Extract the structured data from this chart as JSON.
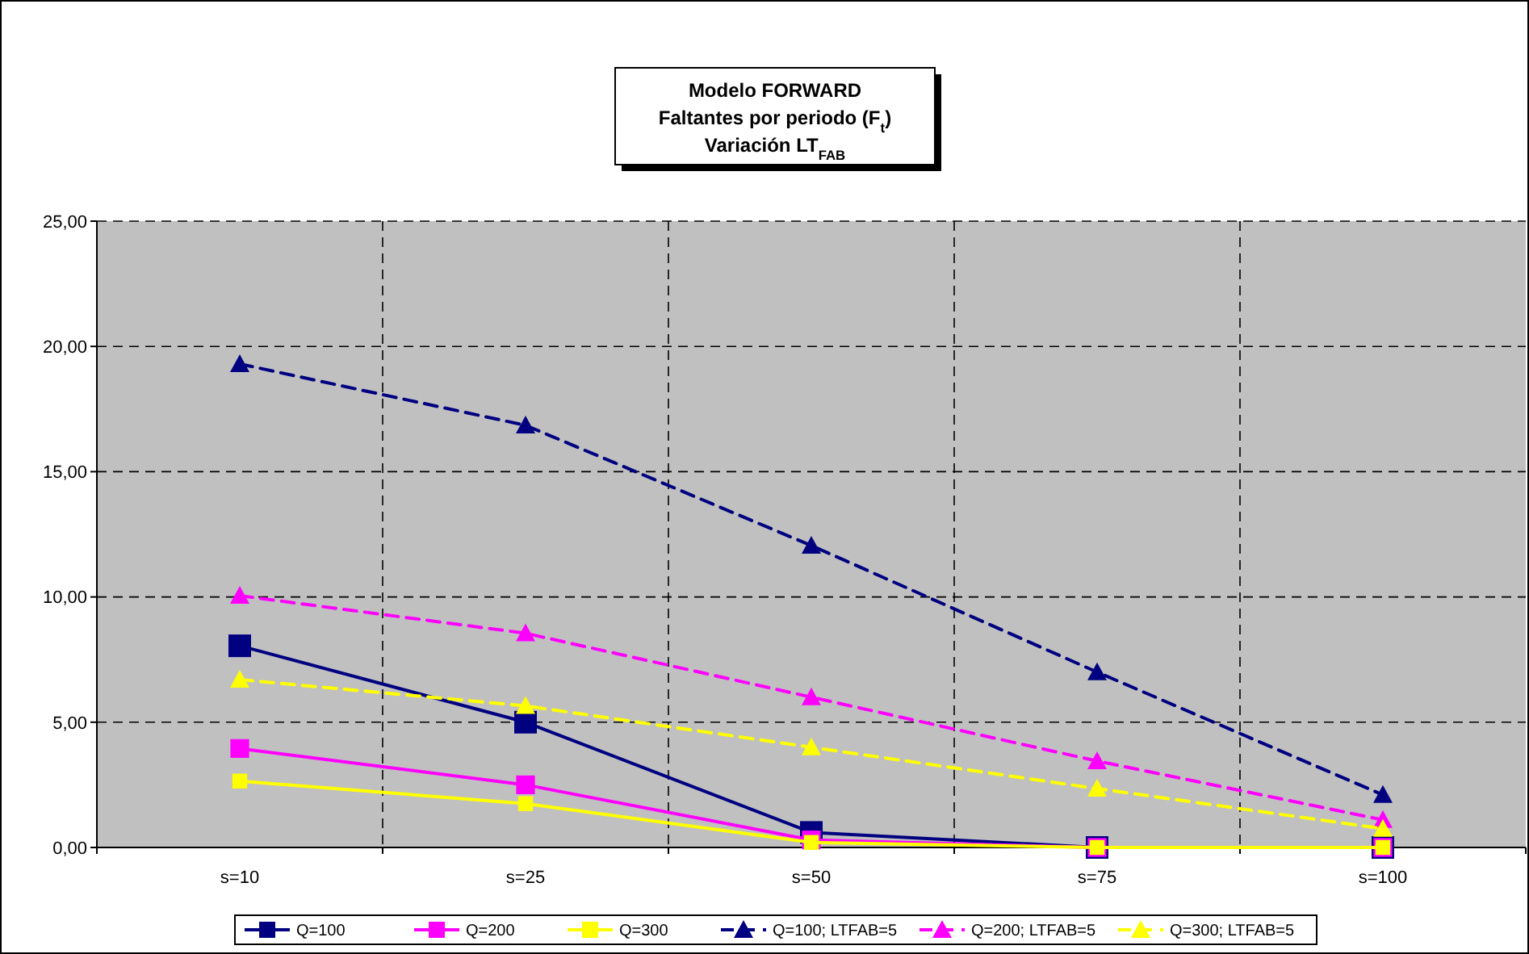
{
  "chart_data": {
    "type": "line",
    "title": "Modelo FORWARD\nFaltantes por periodo (F$_{t}$)\nVariación LT$_{FAB}$",
    "categories": [
      "s=10",
      "s=25",
      "s=50",
      "s=75",
      "s=100"
    ],
    "series": [
      {
        "name": "Q=100",
        "color": "#000080",
        "marker": "square",
        "line_style": "solid",
        "values": [
          8.05,
          5.0,
          0.6,
          0,
          0
        ]
      },
      {
        "name": "Q=200",
        "color": "#ff00ff",
        "marker": "square",
        "line_style": "solid",
        "values": [
          3.95,
          2.5,
          0.3,
          0,
          0
        ]
      },
      {
        "name": "Q=300",
        "color": "#ffff00",
        "marker": "square",
        "line_style": "solid",
        "values": [
          2.65,
          1.75,
          0.2,
          0,
          0
        ]
      },
      {
        "name": "Q=100; LTFAB=5",
        "color": "#000080",
        "marker": "triangle",
        "line_style": "dashed",
        "values": [
          19.3,
          16.85,
          12.05,
          7.0,
          2.1
        ]
      },
      {
        "name": "Q=200; LTFAB=5",
        "color": "#ff00ff",
        "marker": "triangle",
        "line_style": "dashed",
        "values": [
          10.05,
          8.55,
          6.0,
          3.45,
          1.1
        ]
      },
      {
        "name": "Q=300; LTFAB=5",
        "color": "#ffff00",
        "marker": "triangle",
        "line_style": "dashed",
        "values": [
          6.7,
          5.65,
          4.0,
          2.35,
          0.75
        ]
      }
    ],
    "ylim": [
      0,
      25
    ],
    "yticks": [
      {
        "value": 0,
        "label": "0,00"
      },
      {
        "value": 5,
        "label": "5,00"
      },
      {
        "value": 10,
        "label": "10,00"
      },
      {
        "value": 15,
        "label": "15,00"
      },
      {
        "value": 20,
        "label": "20,00"
      },
      {
        "value": 25,
        "label": "25,00"
      }
    ],
    "grid": true,
    "legend": "bottom"
  }
}
